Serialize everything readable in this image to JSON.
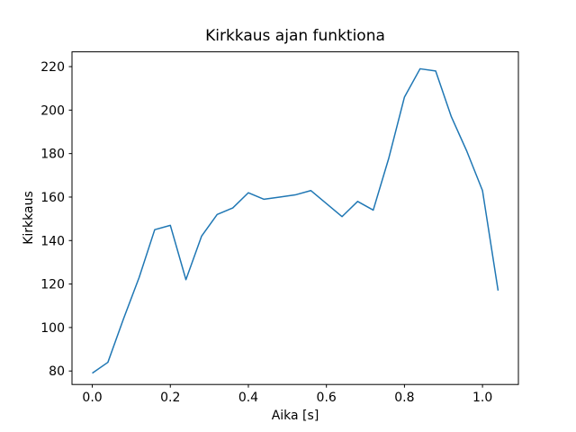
{
  "chart_data": {
    "type": "line",
    "title": "Kirkkaus ajan funktiona",
    "xlabel": "Aika [s]",
    "ylabel": "Kirkkaus",
    "x": [
      0.0,
      0.04,
      0.08,
      0.12,
      0.16,
      0.2,
      0.24,
      0.28,
      0.32,
      0.36,
      0.4,
      0.44,
      0.48,
      0.52,
      0.56,
      0.6,
      0.64,
      0.68,
      0.72,
      0.76,
      0.8,
      0.84,
      0.88,
      0.92,
      0.96,
      1.0,
      1.04
    ],
    "y": [
      79,
      84,
      104,
      123,
      145,
      147,
      122,
      142,
      152,
      155,
      162,
      159,
      160,
      161,
      163,
      157,
      151,
      158,
      154,
      178,
      206,
      219,
      218,
      197,
      181,
      163,
      117
    ],
    "xlim": [
      -0.052,
      1.092
    ],
    "ylim": [
      73.8,
      226.8
    ],
    "xticks": {
      "values": [
        0.0,
        0.2,
        0.4,
        0.6,
        0.8,
        1.0
      ],
      "labels": [
        "0.0",
        "0.2",
        "0.4",
        "0.6",
        "0.8",
        "1.0"
      ]
    },
    "yticks": {
      "values": [
        80,
        100,
        120,
        140,
        160,
        180,
        200,
        220
      ],
      "labels": [
        "80",
        "100",
        "120",
        "140",
        "160",
        "180",
        "200",
        "220"
      ]
    },
    "line_color": "#1f77b4",
    "axis_color": "#000000",
    "background_color": "#ffffff",
    "grid": false,
    "legend": null
  }
}
